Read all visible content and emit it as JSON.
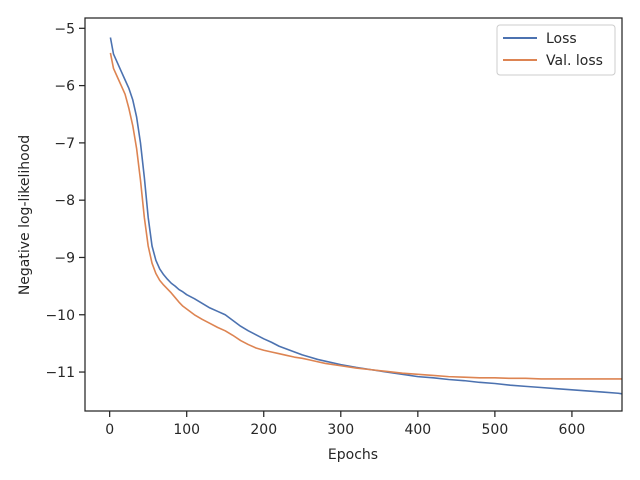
{
  "chart_data": {
    "type": "line",
    "title": "",
    "xlabel": "Epochs",
    "ylabel": "Negative log-likelihood",
    "xlim": [
      -32,
      665
    ],
    "ylim": [
      -11.68,
      -4.82
    ],
    "xticks": [
      0,
      100,
      200,
      300,
      400,
      500,
      600
    ],
    "yticks": [
      -5,
      -6,
      -7,
      -8,
      -9,
      -10,
      -11
    ],
    "grid": false,
    "legend_position": "top-right",
    "series": [
      {
        "name": "Loss",
        "color": "#4c72b0",
        "x": [
          1,
          5,
          10,
          15,
          20,
          25,
          30,
          35,
          40,
          45,
          50,
          55,
          60,
          65,
          70,
          75,
          80,
          85,
          90,
          95,
          100,
          110,
          120,
          130,
          140,
          150,
          160,
          170,
          180,
          190,
          200,
          210,
          220,
          230,
          240,
          250,
          260,
          270,
          280,
          290,
          300,
          320,
          340,
          360,
          380,
          400,
          420,
          440,
          460,
          480,
          500,
          520,
          540,
          560,
          580,
          600,
          620,
          640,
          660,
          665
        ],
        "y": [
          -5.16,
          -5.45,
          -5.6,
          -5.75,
          -5.9,
          -6.05,
          -6.25,
          -6.55,
          -7.0,
          -7.6,
          -8.3,
          -8.8,
          -9.05,
          -9.2,
          -9.3,
          -9.38,
          -9.45,
          -9.5,
          -9.56,
          -9.6,
          -9.65,
          -9.72,
          -9.8,
          -9.88,
          -9.94,
          -10.0,
          -10.1,
          -10.2,
          -10.28,
          -10.35,
          -10.42,
          -10.48,
          -10.55,
          -10.6,
          -10.65,
          -10.7,
          -10.74,
          -10.78,
          -10.81,
          -10.84,
          -10.87,
          -10.92,
          -10.96,
          -11.0,
          -11.04,
          -11.08,
          -11.1,
          -11.13,
          -11.15,
          -11.18,
          -11.2,
          -11.23,
          -11.25,
          -11.27,
          -11.29,
          -11.31,
          -11.33,
          -11.35,
          -11.37,
          -11.38
        ]
      },
      {
        "name": "Val. loss",
        "color": "#dd8452",
        "x": [
          1,
          5,
          10,
          15,
          20,
          25,
          30,
          35,
          40,
          45,
          50,
          55,
          60,
          65,
          70,
          75,
          80,
          85,
          90,
          95,
          100,
          110,
          120,
          130,
          140,
          150,
          160,
          170,
          180,
          190,
          200,
          210,
          220,
          230,
          240,
          250,
          260,
          270,
          280,
          290,
          300,
          320,
          340,
          360,
          380,
          400,
          420,
          440,
          460,
          480,
          500,
          520,
          540,
          560,
          580,
          600,
          620,
          640,
          660,
          665
        ],
        "y": [
          -5.43,
          -5.7,
          -5.85,
          -6.0,
          -6.15,
          -6.4,
          -6.7,
          -7.1,
          -7.65,
          -8.3,
          -8.8,
          -9.1,
          -9.28,
          -9.4,
          -9.48,
          -9.55,
          -9.62,
          -9.7,
          -9.78,
          -9.85,
          -9.9,
          -10.0,
          -10.08,
          -10.15,
          -10.22,
          -10.28,
          -10.36,
          -10.45,
          -10.52,
          -10.58,
          -10.62,
          -10.65,
          -10.68,
          -10.71,
          -10.74,
          -10.76,
          -10.79,
          -10.82,
          -10.85,
          -10.87,
          -10.89,
          -10.93,
          -10.96,
          -10.99,
          -11.02,
          -11.04,
          -11.06,
          -11.08,
          -11.09,
          -11.1,
          -11.1,
          -11.11,
          -11.11,
          -11.12,
          -11.12,
          -11.12,
          -11.12,
          -11.12,
          -11.12,
          -11.12
        ]
      }
    ]
  }
}
